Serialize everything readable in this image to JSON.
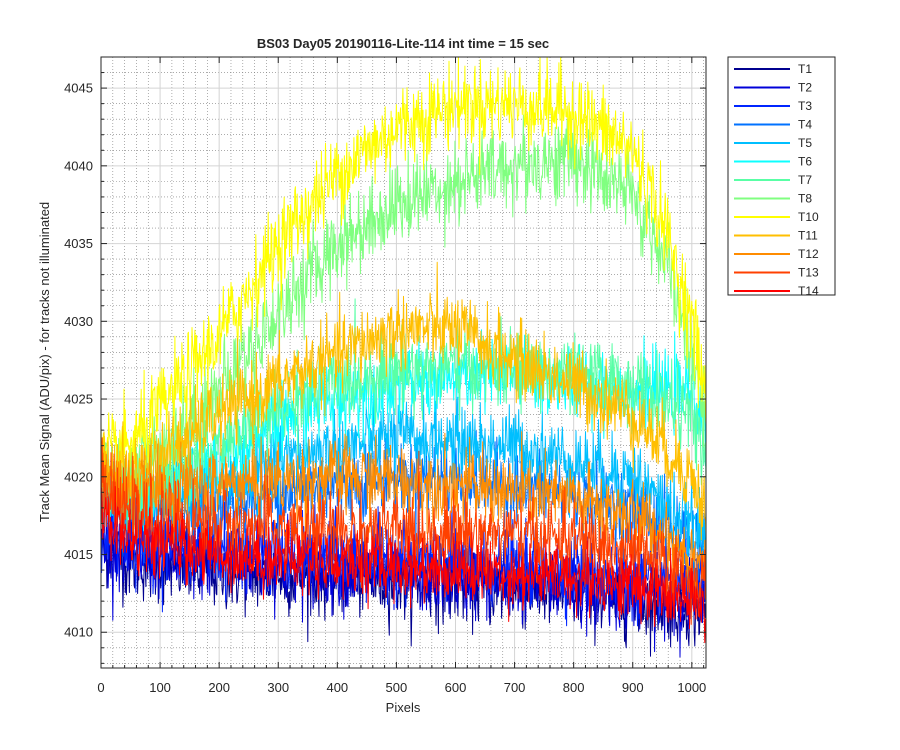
{
  "chart_data": {
    "type": "line",
    "title": "BS03 Day05 20190116-Lite-114 int time = 15 sec",
    "xlabel": "Pixels",
    "ylabel": "Track Mean Signal (ADU/pix) - for tracks not illuminated",
    "xlim": [
      0,
      1024
    ],
    "ylim": [
      4007.7,
      4047
    ],
    "xticks": [
      0,
      100,
      200,
      300,
      400,
      500,
      600,
      700,
      800,
      900,
      1000
    ],
    "yticks": [
      4010,
      4015,
      4020,
      4025,
      4030,
      4035,
      4040,
      4045
    ],
    "grid": "major and minor",
    "legend_position": "outside-top-right",
    "series": [
      {
        "name": "T1",
        "color": "#00008f",
        "noise": 1.6,
        "profile": {
          "x": [
            0,
            50,
            200,
            400,
            600,
            800,
            900,
            1024
          ],
          "y": [
            4015.5,
            4014.5,
            4013.8,
            4013.5,
            4013.0,
            4012.5,
            4012.0,
            4011.5
          ]
        }
      },
      {
        "name": "T2",
        "color": "#0000d9",
        "noise": 1.6,
        "profile": {
          "x": [
            0,
            50,
            200,
            400,
            600,
            800,
            900,
            1024
          ],
          "y": [
            4016.0,
            4015.0,
            4014.5,
            4014.0,
            4013.5,
            4013.0,
            4012.5,
            4012.0
          ]
        }
      },
      {
        "name": "T3",
        "color": "#0025ff",
        "noise": 1.6,
        "profile": {
          "x": [
            0,
            50,
            200,
            400,
            600,
            800,
            900,
            1024
          ],
          "y": [
            4017.0,
            4016.0,
            4015.5,
            4015.0,
            4014.5,
            4014.0,
            4013.5,
            4013.0
          ]
        }
      },
      {
        "name": "T4",
        "color": "#0072ff",
        "noise": 1.6,
        "profile": {
          "x": [
            0,
            50,
            200,
            300,
            500,
            700,
            900,
            1024
          ],
          "y": [
            4018.5,
            4017.5,
            4018.0,
            4019.0,
            4020.0,
            4019.5,
            4018.0,
            4015.5
          ]
        }
      },
      {
        "name": "T5",
        "color": "#00bfff",
        "noise": 1.6,
        "profile": {
          "x": [
            0,
            50,
            200,
            350,
            500,
            700,
            900,
            1024
          ],
          "y": [
            4019.0,
            4018.0,
            4019.5,
            4021.5,
            4022.5,
            4022.0,
            4020.0,
            4016.0
          ]
        }
      },
      {
        "name": "T6",
        "color": "#0dffff",
        "noise": 1.6,
        "profile": {
          "x": [
            0,
            50,
            200,
            350,
            500,
            700,
            900,
            1000,
            1024
          ],
          "y": [
            4019.5,
            4018.5,
            4021.0,
            4024.5,
            4026.0,
            4026.5,
            4025.5,
            4025.5,
            4024.0
          ]
        }
      },
      {
        "name": "T7",
        "color": "#59ffa6",
        "noise": 1.6,
        "profile": {
          "x": [
            0,
            50,
            200,
            350,
            500,
            700,
            900,
            1000,
            1024
          ],
          "y": [
            4020.0,
            4019.0,
            4022.0,
            4025.5,
            4027.0,
            4027.0,
            4026.0,
            4024.0,
            4021.0
          ]
        }
      },
      {
        "name": "T8",
        "color": "#80ff80",
        "noise": 1.8,
        "profile": {
          "x": [
            0,
            50,
            200,
            300,
            400,
            500,
            600,
            700,
            800,
            900,
            950,
            1000,
            1024
          ],
          "y": [
            4019.0,
            4020.0,
            4025.5,
            4030.5,
            4035.0,
            4037.5,
            4039.0,
            4040.0,
            4040.5,
            4038.0,
            4034.5,
            4028.0,
            4024.5
          ]
        }
      },
      {
        "name": "T10",
        "color": "#ffff00",
        "noise": 1.8,
        "profile": {
          "x": [
            0,
            50,
            200,
            300,
            400,
            500,
            600,
            700,
            800,
            900,
            950,
            1000,
            1024
          ],
          "y": [
            4021.0,
            4022.0,
            4029.0,
            4035.0,
            4039.5,
            4042.5,
            4044.0,
            4044.0,
            4043.5,
            4041.0,
            4036.5,
            4030.0,
            4025.0
          ]
        }
      },
      {
        "name": "T11",
        "color": "#ffbf00",
        "noise": 1.6,
        "profile": {
          "x": [
            0,
            50,
            200,
            350,
            500,
            600,
            700,
            800,
            900,
            1000,
            1024
          ],
          "y": [
            4021.0,
            4020.0,
            4024.0,
            4027.0,
            4029.5,
            4029.5,
            4027.5,
            4026.0,
            4024.0,
            4020.0,
            4017.5
          ]
        }
      },
      {
        "name": "T12",
        "color": "#ff8c00",
        "noise": 1.6,
        "profile": {
          "x": [
            0,
            50,
            200,
            400,
            600,
            800,
            900,
            1024
          ],
          "y": [
            4020.0,
            4019.0,
            4019.5,
            4020.0,
            4019.5,
            4018.5,
            4017.5,
            4014.5
          ]
        }
      },
      {
        "name": "T13",
        "color": "#ff4000",
        "noise": 1.6,
        "profile": {
          "x": [
            0,
            50,
            200,
            400,
            600,
            800,
            900,
            1024
          ],
          "y": [
            4019.0,
            4017.5,
            4017.0,
            4016.5,
            4016.5,
            4016.0,
            4015.0,
            4013.0
          ]
        }
      },
      {
        "name": "T14",
        "color": "#ff0000",
        "noise": 1.4,
        "profile": {
          "x": [
            0,
            50,
            200,
            400,
            600,
            800,
            900,
            1024
          ],
          "y": [
            4017.5,
            4016.0,
            4015.0,
            4014.5,
            4014.0,
            4013.5,
            4013.0,
            4011.5
          ]
        }
      }
    ]
  }
}
